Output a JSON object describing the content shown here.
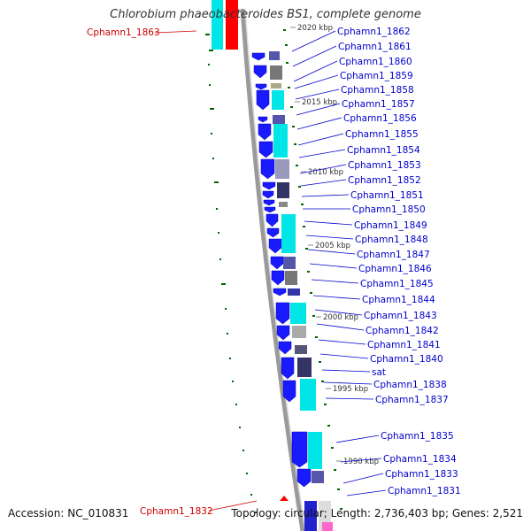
{
  "title": "Chlorobium phaeobacteroides BS1, complete genome",
  "footer": {
    "accession": "Accession: NC_010831",
    "topology": "Topology: circular; Length: 2,736,403 bp; Genes: 2,521"
  },
  "colors": {
    "gene_label": "#0000cc",
    "highlight_label": "#cc0000",
    "forward_cds": "#1a1aff",
    "cyan_feature": "#00e6e6",
    "red_feature": "#ff0000",
    "backbone": "#808080",
    "gc_ticks": "#006600"
  },
  "ruler_labels": [
    "2020 kbp",
    "2015 kbp",
    "2010 kbp",
    "2005 kbp",
    "2000 kbp",
    "1995 kbp",
    "1990 kbp"
  ],
  "gene_labels": [
    "Cphamn1_1862",
    "Cphamn1_1861",
    "Cphamn1_1860",
    "Cphamn1_1859",
    "Cphamn1_1858",
    "Cphamn1_1857",
    "Cphamn1_1856",
    "Cphamn1_1855",
    "Cphamn1_1854",
    "Cphamn1_1853",
    "Cphamn1_1852",
    "Cphamn1_1851",
    "Cphamn1_1850",
    "Cphamn1_1849",
    "Cphamn1_1848",
    "Cphamn1_1847",
    "Cphamn1_1846",
    "Cphamn1_1845",
    "Cphamn1_1844",
    "Cphamn1_1843",
    "Cphamn1_1842",
    "Cphamn1_1841",
    "Cphamn1_1840",
    "sat",
    "Cphamn1_1838",
    "Cphamn1_1837",
    "Cphamn1_1835",
    "Cphamn1_1834",
    "Cphamn1_1833",
    "Cphamn1_1831"
  ],
  "highlight_labels": [
    "Cphamn1_1863",
    "Cphamn1_1832"
  ]
}
